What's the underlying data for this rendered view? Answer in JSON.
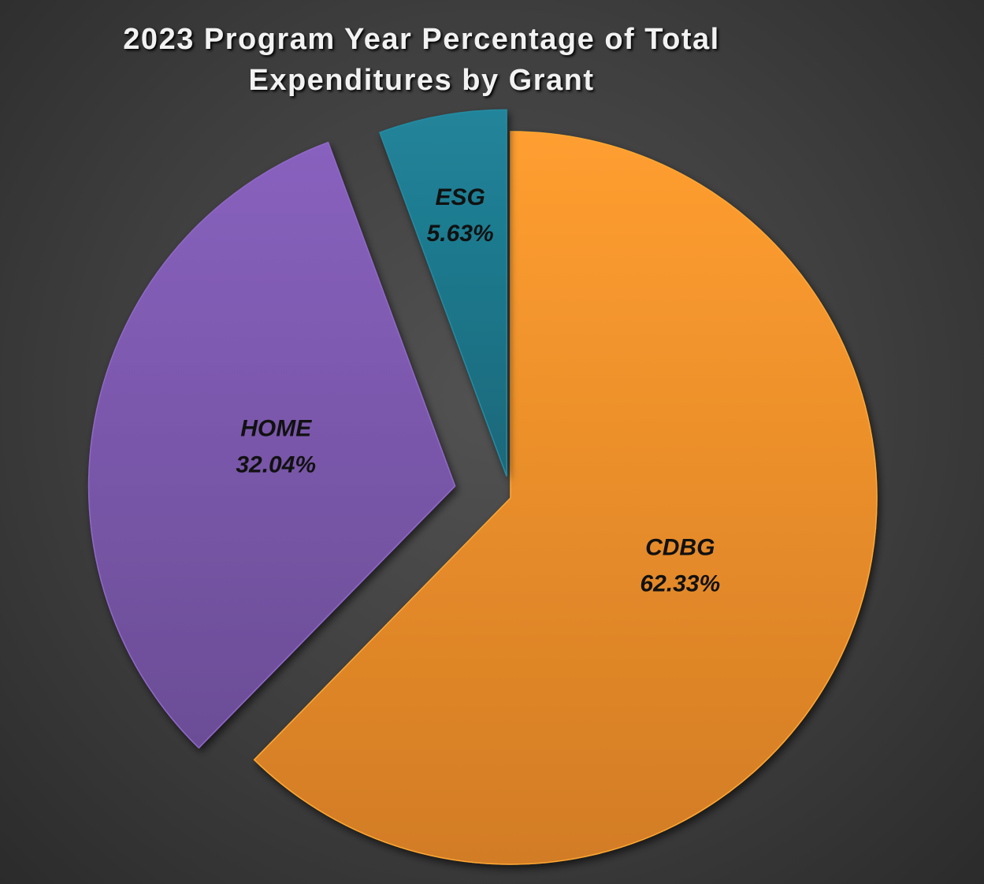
{
  "chart_data": {
    "type": "pie",
    "title": "2023 Program Year Percentage of Total Expenditures by Grant",
    "categories": [
      "CDBG",
      "HOME",
      "ESG"
    ],
    "values": [
      62.33,
      32.04,
      5.63
    ],
    "value_labels": [
      "62.33%",
      "32.04%",
      "5.63%"
    ],
    "colors": [
      "#f7922c",
      "#7e5ab0",
      "#1f7a8f"
    ]
  }
}
